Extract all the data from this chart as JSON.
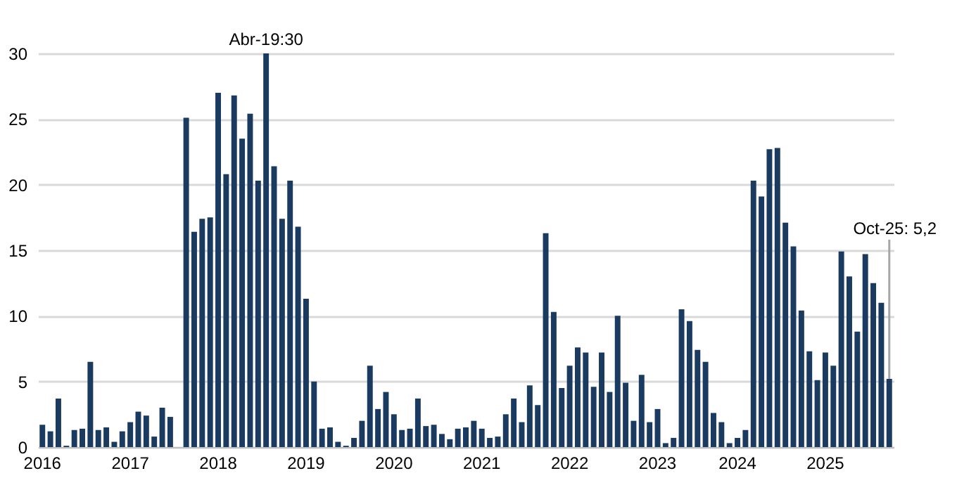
{
  "chart_data": {
    "type": "bar",
    "categories": [
      "2016",
      null,
      null,
      null,
      null,
      null,
      null,
      null,
      null,
      null,
      null,
      "2017",
      null,
      null,
      null,
      null,
      null,
      null,
      null,
      null,
      null,
      null,
      "2018",
      null,
      null,
      null,
      null,
      null,
      null,
      null,
      null,
      null,
      null,
      "2019",
      null,
      null,
      null,
      null,
      null,
      null,
      null,
      null,
      null,
      null,
      "2020",
      null,
      null,
      null,
      null,
      null,
      null,
      null,
      null,
      null,
      null,
      "2021",
      null,
      null,
      null,
      null,
      null,
      null,
      null,
      null,
      null,
      null,
      "2022",
      null,
      null,
      null,
      null,
      null,
      null,
      null,
      null,
      null,
      null,
      "2023",
      null,
      null,
      null,
      null,
      null,
      null,
      null,
      null,
      null,
      "2024",
      null,
      null,
      null,
      null,
      null,
      null,
      null,
      null,
      null,
      null,
      "2025",
      null,
      null,
      null,
      null,
      null,
      null,
      null,
      null
    ],
    "values": [
      1.7,
      1.2,
      3.7,
      0.1,
      1.3,
      1.4,
      6.5,
      1.3,
      1.5,
      0.4,
      1.2,
      1.9,
      2.7,
      2.4,
      0.8,
      3.0,
      2.3,
      0,
      25.1,
      16.4,
      17.4,
      17.5,
      27.0,
      20.8,
      26.8,
      23.5,
      25.4,
      20.3,
      30,
      21.4,
      17.4,
      20.3,
      16.8,
      11.3,
      5.0,
      1.4,
      1.5,
      0.4,
      0.1,
      0.7,
      2.0,
      6.2,
      2.9,
      4.2,
      2.5,
      1.3,
      1.4,
      3.7,
      1.6,
      1.7,
      1.0,
      0.6,
      1.4,
      1.5,
      2.0,
      1.4,
      0.7,
      0.8,
      2.5,
      3.7,
      1.9,
      4.7,
      3.2,
      16.3,
      10.3,
      4.5,
      6.2,
      7.6,
      7.2,
      4.6,
      7.2,
      4.2,
      10.0,
      4.9,
      2.0,
      5.5,
      1.9,
      2.9,
      0.3,
      0.7,
      10.5,
      9.6,
      7.4,
      6.5,
      2.6,
      1.9,
      0.3,
      0.7,
      1.3,
      20.3,
      19.1,
      22.7,
      22.8,
      17.1,
      15.3,
      10.4,
      7.3,
      5.1,
      7.2,
      6.2,
      14.9,
      13.0,
      8.8,
      14.7,
      12.5,
      11.0,
      5.2
    ],
    "color": "#1a3a5f",
    "ylim": [
      0,
      30
    ],
    "yticks": [
      0,
      5,
      10,
      15,
      20,
      25,
      30
    ],
    "grid": "y",
    "annotations": [
      {
        "text": "Abr-19:30",
        "y": 30
      },
      {
        "text": "Oct-25: 5,2",
        "y": 5.2
      }
    ]
  }
}
